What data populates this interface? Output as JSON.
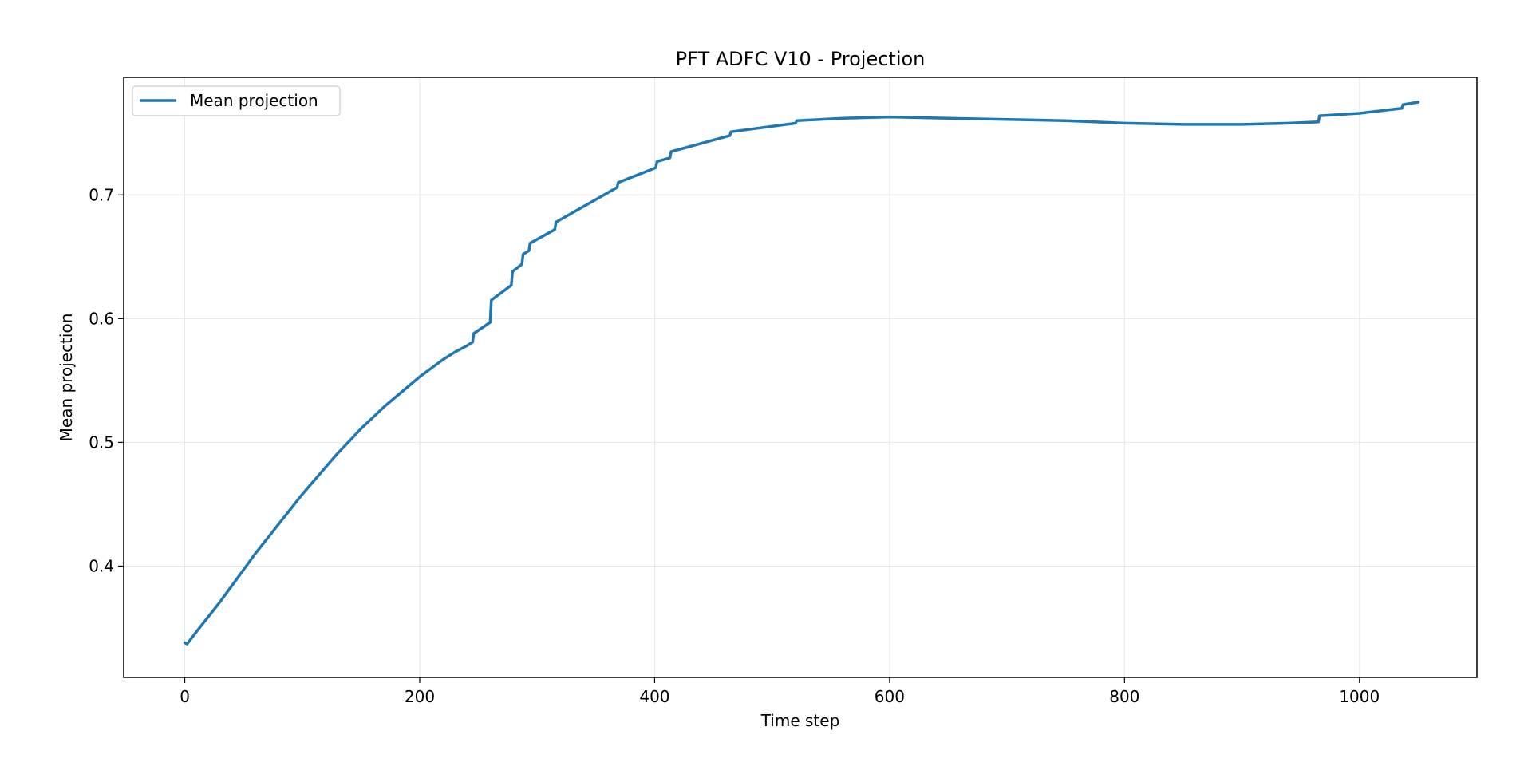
{
  "chart_data": {
    "type": "line",
    "title": "PFT ADFC V10 - Projection",
    "xlabel": "Time step",
    "ylabel": "Mean projection",
    "xlim": [
      -52,
      1100
    ],
    "ylim": [
      0.31,
      0.795
    ],
    "xticks": [
      0,
      200,
      400,
      600,
      800,
      1000
    ],
    "yticks": [
      0.4,
      0.5,
      0.6,
      0.7
    ],
    "xtick_labels": [
      "0",
      "200",
      "400",
      "600",
      "800",
      "1000"
    ],
    "ytick_labels": [
      "0.4",
      "0.5",
      "0.6",
      "0.7"
    ],
    "grid": true,
    "legend": {
      "position": "top-left",
      "entries": [
        "Mean projection"
      ]
    },
    "colors": {
      "line": "#1f77b4",
      "grid": "#e6e6e6",
      "frame": "#000000"
    },
    "series": [
      {
        "name": "Mean projection",
        "x": [
          0,
          2,
          10,
          20,
          30,
          40,
          50,
          60,
          70,
          80,
          90,
          100,
          110,
          120,
          130,
          140,
          150,
          160,
          170,
          180,
          190,
          200,
          210,
          220,
          230,
          240,
          245,
          246,
          260,
          261,
          278,
          279,
          287,
          288,
          293,
          294,
          315,
          316,
          368,
          369,
          401,
          402,
          413,
          414,
          464,
          465,
          520,
          521,
          560,
          600,
          650,
          700,
          750,
          800,
          850,
          900,
          940,
          965,
          966,
          1000,
          1036,
          1037,
          1050
        ],
        "y": [
          0.338,
          0.337,
          0.347,
          0.359,
          0.371,
          0.384,
          0.397,
          0.41,
          0.422,
          0.434,
          0.446,
          0.458,
          0.469,
          0.48,
          0.491,
          0.501,
          0.511,
          0.52,
          0.529,
          0.537,
          0.545,
          0.553,
          0.56,
          0.567,
          0.573,
          0.578,
          0.581,
          0.588,
          0.597,
          0.615,
          0.627,
          0.638,
          0.644,
          0.652,
          0.655,
          0.661,
          0.672,
          0.678,
          0.706,
          0.71,
          0.722,
          0.727,
          0.73,
          0.735,
          0.748,
          0.751,
          0.758,
          0.76,
          0.762,
          0.763,
          0.762,
          0.761,
          0.76,
          0.758,
          0.757,
          0.757,
          0.758,
          0.759,
          0.764,
          0.766,
          0.77,
          0.773,
          0.775
        ]
      }
    ]
  }
}
